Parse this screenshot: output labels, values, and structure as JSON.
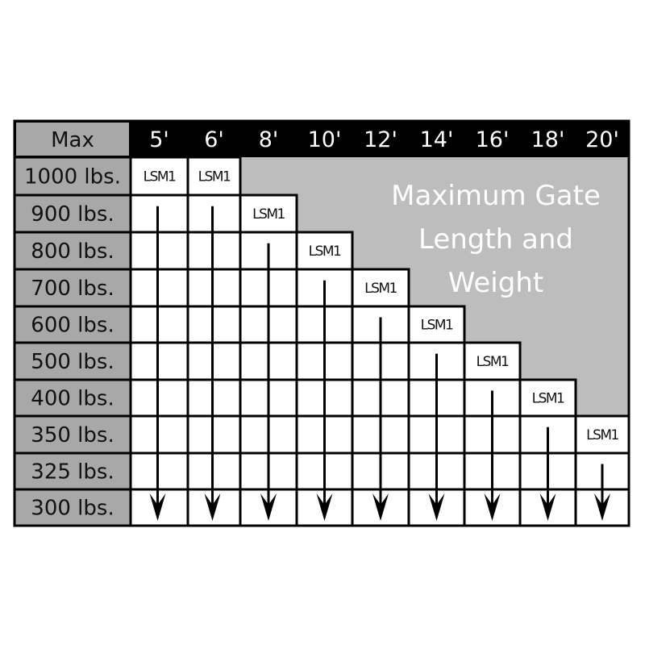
{
  "chart_data": {
    "type": "table",
    "corner_label": "Max",
    "columns": [
      "5'",
      "6'",
      "8'",
      "10'",
      "12'",
      "14'",
      "16'",
      "18'",
      "20'"
    ],
    "rows": [
      "1000 lbs.",
      "900 lbs.",
      "800 lbs.",
      "700 lbs.",
      "600 lbs.",
      "500 lbs.",
      "400 lbs.",
      "350 lbs.",
      "325 lbs.",
      "300 lbs."
    ],
    "cell_label": "LSM1",
    "max_weight_by_length": {
      "5'": "1000 lbs.",
      "6'": "1000 lbs.",
      "8'": "900 lbs.",
      "10'": "800 lbs.",
      "12'": "700 lbs.",
      "14'": "600 lbs.",
      "16'": "500 lbs.",
      "18'": "400 lbs.",
      "20'": "350 lbs."
    },
    "lsm_row_index": [
      0,
      0,
      1,
      2,
      3,
      4,
      5,
      6,
      7
    ],
    "title_lines": [
      "Maximum Gate",
      "Length and",
      "Weight"
    ],
    "colors": {
      "header": "#000000",
      "row_label_bg": "#a8a8a8",
      "unavailable_area": "#bdbdbe",
      "cell": "#ffffff"
    }
  }
}
